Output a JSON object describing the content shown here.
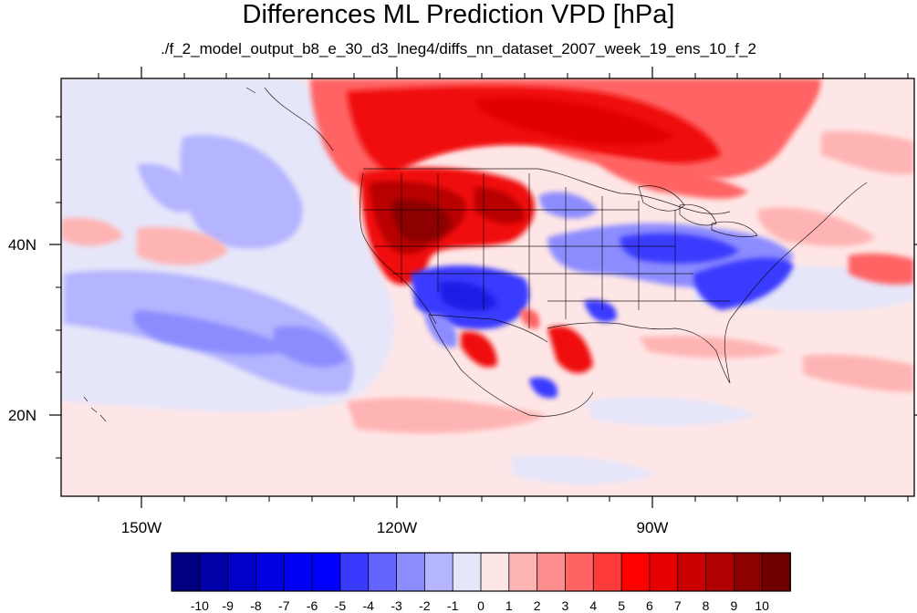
{
  "title": "Differences ML Prediction VPD [hPa]",
  "subtitle": "./f_2_model_output_b8_e_30_d3_lneg4/diffs_nn_dataset_2007_week_19_ens_10_f_2",
  "map": {
    "x_tick_labels": [
      "150W",
      "120W",
      "90W"
    ],
    "y_tick_labels": [
      "40N",
      "20N"
    ]
  },
  "colorbar": {
    "labels": [
      "-10",
      "-9",
      "-8",
      "-7",
      "-6",
      "-5",
      "-4",
      "-3",
      "-2",
      "-1",
      "0",
      "1",
      "2",
      "3",
      "4",
      "5",
      "6",
      "7",
      "8",
      "9",
      "10"
    ],
    "colors": [
      "#000080",
      "#0000a8",
      "#0000c8",
      "#0000e0",
      "#0000f5",
      "#0000ff",
      "#3a3aff",
      "#6464ff",
      "#8c8cff",
      "#b4b4ff",
      "#e6e6fa",
      "#ffe6e6",
      "#ffb4b4",
      "#ff8c8c",
      "#ff6464",
      "#ff3a3a",
      "#ff0000",
      "#e60000",
      "#cc0000",
      "#b00000",
      "#8c0000",
      "#700000"
    ]
  },
  "palette": {
    "dark_red": "#b80000",
    "red": "#f01010",
    "mid_red": "#ff6464",
    "light_red": "#ffb4b4",
    "pale_red": "#ffe6e6",
    "pale_blue": "#e6e6fa",
    "light_blue": "#b4b4ff",
    "mid_blue": "#8c8cff",
    "blue": "#3a3aff",
    "deep_blue": "#1a1ae6"
  }
}
